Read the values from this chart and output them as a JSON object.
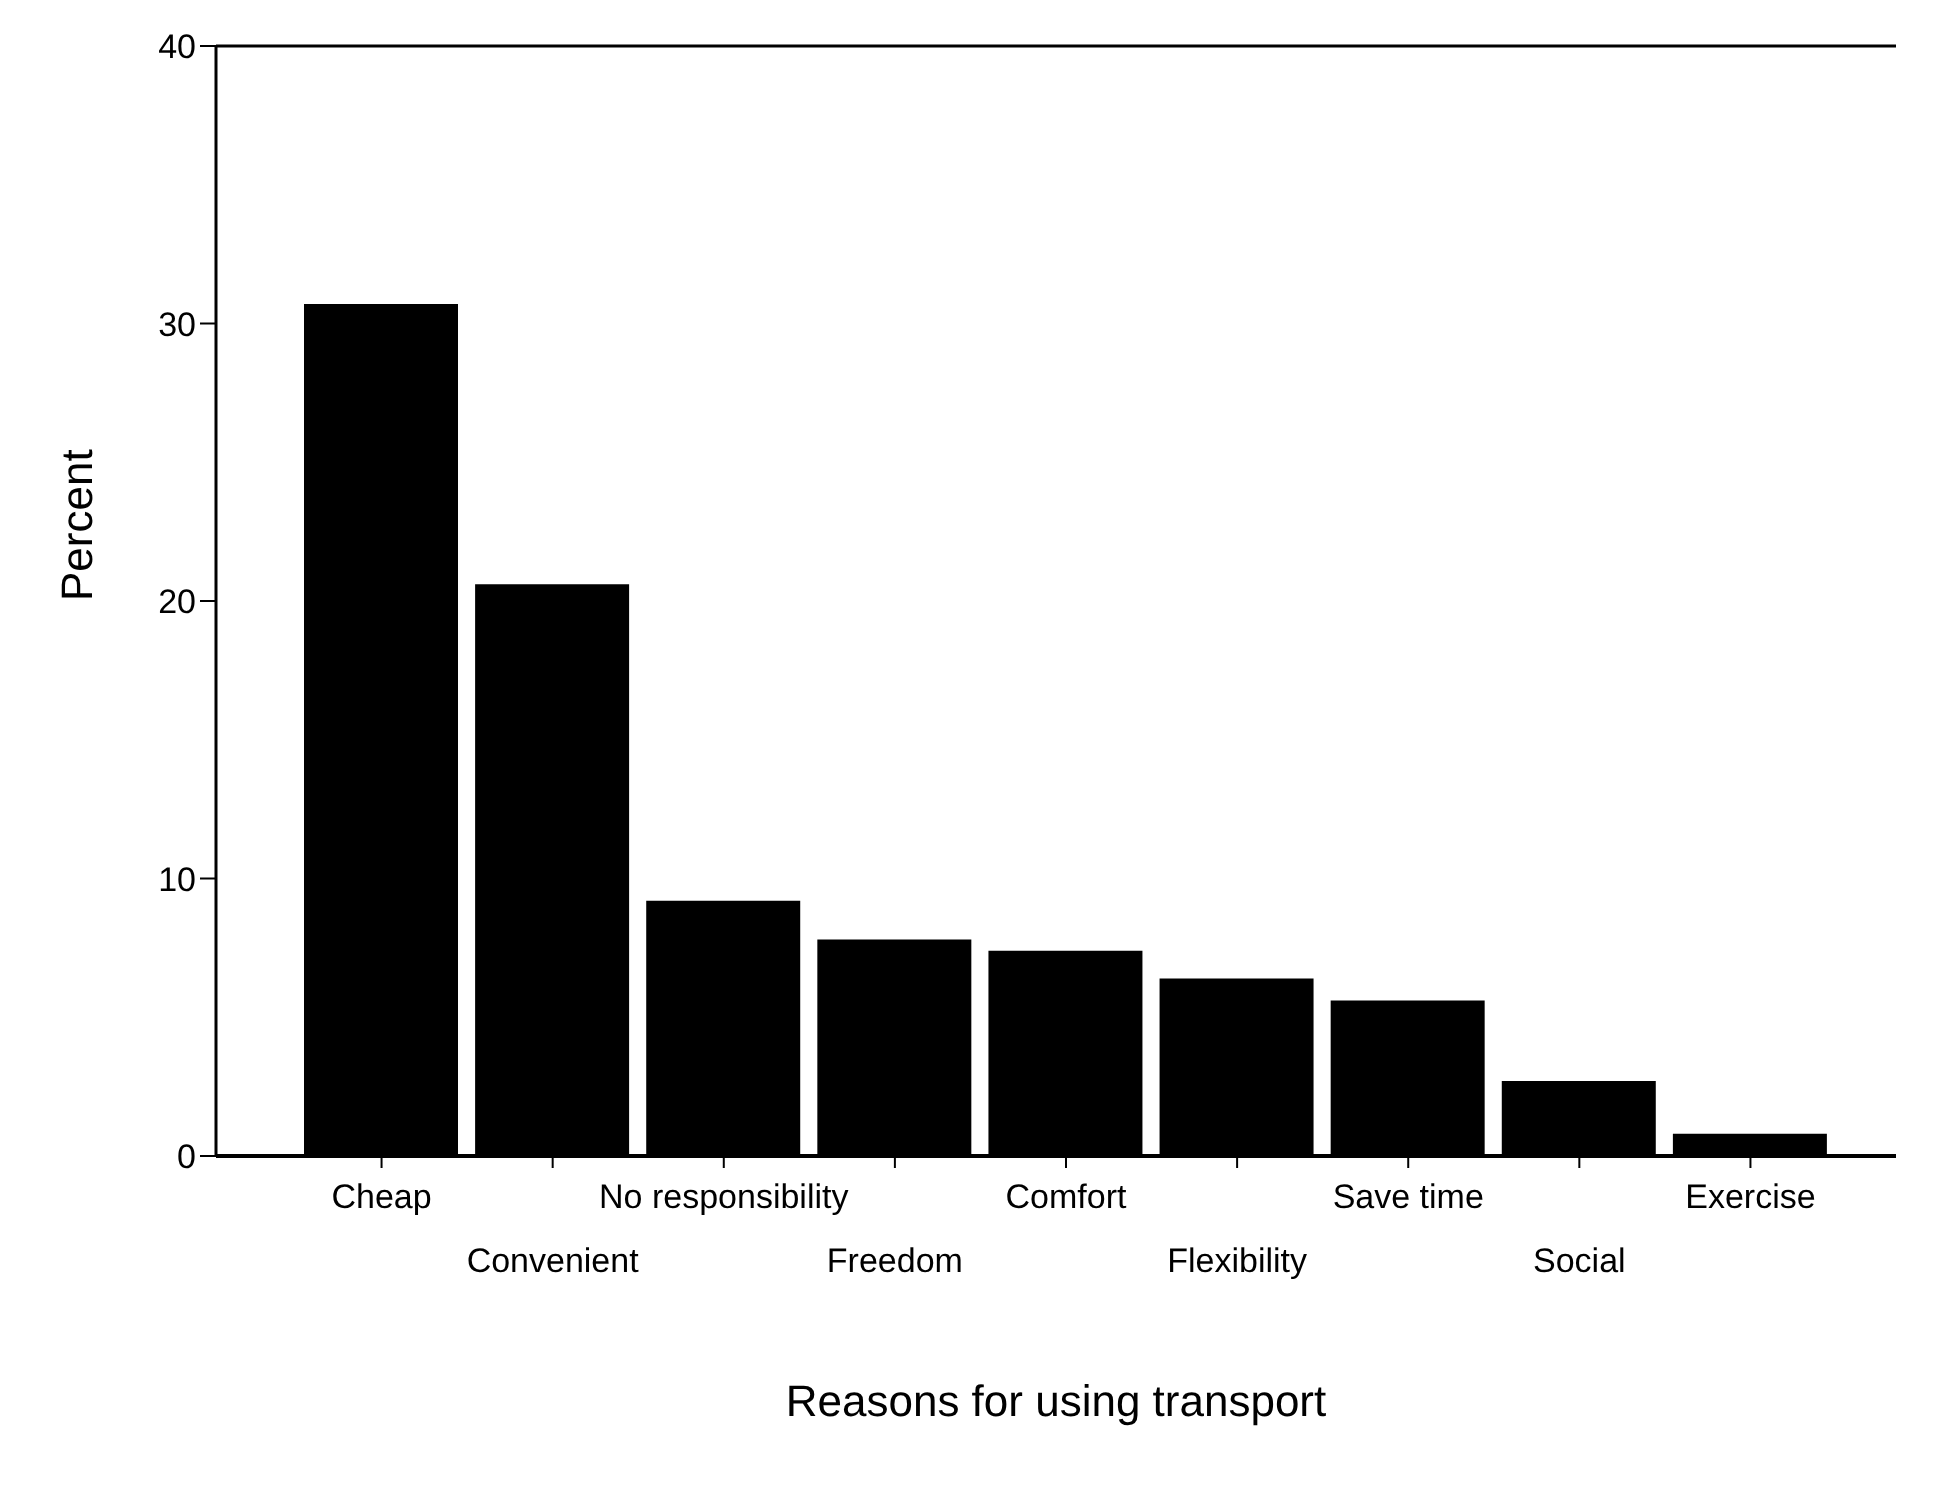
{
  "chart_data": {
    "type": "bar",
    "xlabel": "Reasons for using transport",
    "ylabel": "Percent",
    "categories": [
      "Cheap",
      "Convenient",
      "No responsibility",
      "Freedom",
      "Comfort",
      "Flexibility",
      "Save time",
      "Social",
      "Exercise"
    ],
    "values": [
      30.7,
      20.6,
      9.2,
      7.8,
      7.4,
      6.4,
      5.6,
      2.7,
      0.8
    ],
    "color": "#000000",
    "ylim": [
      0,
      40
    ],
    "yticks": [
      0,
      10,
      20,
      30,
      40
    ],
    "grid": false
  }
}
